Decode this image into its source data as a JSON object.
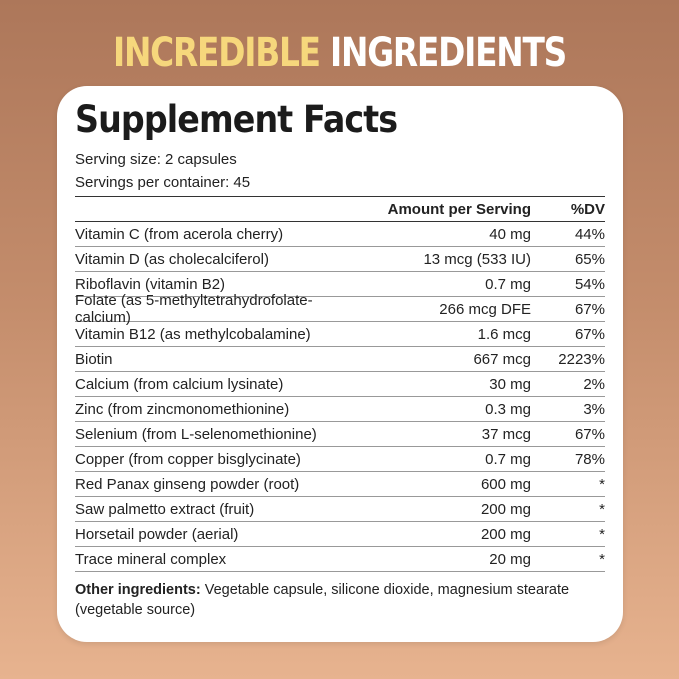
{
  "headline": {
    "part1": "INCREDIBLE",
    "part2": "INGREDIENTS"
  },
  "colors": {
    "headline_accent": "#f6d77c",
    "background_top": "#ad775a",
    "background_bottom": "#e7b38f"
  },
  "title": "Supplement Facts",
  "serving_size": "Serving size: 2 capsules",
  "servings_per_container": "Servings per container: 45",
  "table": {
    "headers": [
      "",
      "Amount per Serving",
      "%DV"
    ],
    "rows": [
      [
        "Vitamin C (from acerola cherry)",
        "40 mg",
        "44%"
      ],
      [
        "Vitamin D (as cholecalciferol)",
        "13 mcg (533 IU)",
        "65%"
      ],
      [
        "Riboflavin (vitamin B2)",
        "0.7 mg",
        "54%"
      ],
      [
        "Folate (as 5-methyltetrahydrofolate-calcium)",
        "266 mcg DFE",
        "67%"
      ],
      [
        "Vitamin B12 (as methylcobalamine)",
        "1.6 mcg",
        "67%"
      ],
      [
        "Biotin",
        "667 mcg",
        "2223%"
      ],
      [
        "Calcium (from calcium lysinate)",
        "30 mg",
        "2%"
      ],
      [
        "Zinc (from zincmonomethionine)",
        "0.3 mg",
        "3%"
      ],
      [
        "Selenium (from L-selenomethionine)",
        "37 mcg",
        "67%"
      ],
      [
        "Copper (from copper bisglycinate)",
        "0.7 mg",
        "78%"
      ],
      [
        "Red Panax ginseng powder (root)",
        "600 mg",
        "*"
      ],
      [
        "Saw palmetto extract (fruit)",
        "200 mg",
        "*"
      ],
      [
        "Horsetail powder (aerial)",
        "200 mg",
        "*"
      ],
      [
        "Trace mineral complex",
        "20 mg",
        "*"
      ]
    ]
  },
  "other_ingredients": {
    "label": "Other ingredients:",
    "text": " Vegetable capsule, silicone dioxide, magnesium stearate (vegetable source)"
  }
}
